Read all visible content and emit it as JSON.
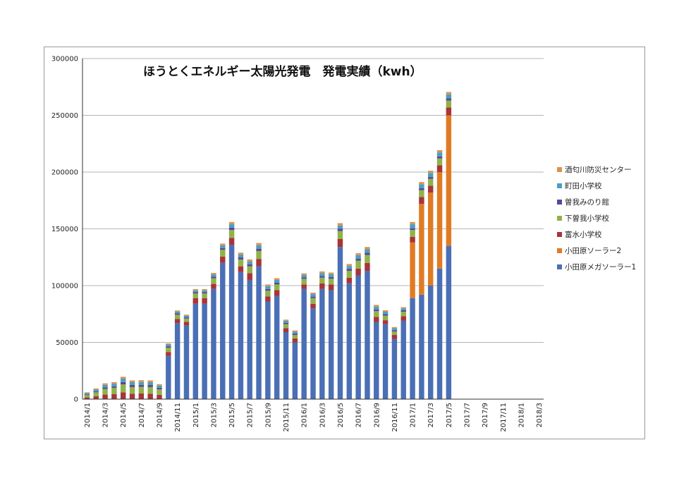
{
  "chart_data": {
    "type": "bar",
    "stacked": true,
    "title": "ほうとくエネルギー太陽光発電　発電実績（kwh）",
    "ylim": [
      0,
      300000
    ],
    "yticks": [
      0,
      50000,
      100000,
      150000,
      200000,
      250000,
      300000
    ],
    "grid": true,
    "legend_position": "right",
    "categories": [
      "2014/1",
      "2014/2",
      "2014/3",
      "2014/4",
      "2014/5",
      "2014/6",
      "2014/7",
      "2014/8",
      "2014/9",
      "2014/10",
      "2014/11",
      "2014/12",
      "2015/1",
      "2015/2",
      "2015/3",
      "2015/4",
      "2015/5",
      "2015/6",
      "2015/7",
      "2015/8",
      "2015/9",
      "2015/10",
      "2015/11",
      "2015/12",
      "2016/1",
      "2016/2",
      "2016/3",
      "2016/4",
      "2016/5",
      "2016/6",
      "2016/7",
      "2016/8",
      "2016/9",
      "2016/10",
      "2016/11",
      "2016/12",
      "2017/1",
      "2017/2",
      "2017/3",
      "2017/4",
      "2017/5",
      "2017/6",
      "2017/7",
      "2017/8",
      "2017/9",
      "2017/10",
      "2017/11",
      "2017/12",
      "2018/1",
      "2018/2",
      "2018/3"
    ],
    "xtick_labels": [
      "2014/1",
      "2014/3",
      "2014/5",
      "2014/7",
      "2014/9",
      "2014/11",
      "2015/1",
      "2015/3",
      "2015/5",
      "2015/7",
      "2015/9",
      "2015/11",
      "2016/1",
      "2016/3",
      "2016/5",
      "2016/7",
      "2016/9",
      "2016/11",
      "2017/1",
      "2017/3",
      "2017/5",
      "2017/7",
      "2017/9",
      "2017/11",
      "2018/1",
      "2018/3"
    ],
    "series": [
      {
        "name": "小田原メガソーラー1",
        "color": "#4a6fb5",
        "values": [
          0,
          0,
          0,
          0,
          0,
          0,
          0,
          0,
          0,
          38000,
          67000,
          65000,
          84000,
          84000,
          97000,
          120000,
          136000,
          112000,
          105000,
          117000,
          86000,
          91000,
          59000,
          50000,
          97000,
          80000,
          97000,
          96000,
          134000,
          102000,
          109000,
          113000,
          68000,
          66000,
          53000,
          69000,
          89000,
          92000,
          100000,
          115000,
          135000,
          0,
          0,
          0,
          0,
          0,
          0,
          0,
          0,
          0,
          0
        ]
      },
      {
        "name": "小田原ソーラー2",
        "color": "#e07b24",
        "values": [
          0,
          0,
          0,
          0,
          0,
          0,
          0,
          0,
          0,
          0,
          0,
          0,
          0,
          0,
          0,
          0,
          0,
          0,
          0,
          0,
          0,
          0,
          0,
          0,
          0,
          0,
          0,
          0,
          0,
          0,
          0,
          0,
          0,
          0,
          0,
          0,
          49000,
          80000,
          82000,
          85000,
          115000,
          0,
          0,
          0,
          0,
          0,
          0,
          0,
          0,
          0,
          0
        ]
      },
      {
        "name": "富水小学校",
        "color": "#a8343a",
        "values": [
          1500,
          2500,
          4000,
          4500,
          6000,
          4800,
          5000,
          4800,
          3800,
          3500,
          3500,
          3000,
          5000,
          5000,
          4500,
          5500,
          6000,
          5000,
          6000,
          6500,
          4500,
          5000,
          3500,
          3500,
          4000,
          4000,
          5000,
          5000,
          7000,
          5000,
          6000,
          7000,
          4500,
          3500,
          3500,
          4000,
          5000,
          6000,
          6000,
          6000,
          7000,
          0,
          0,
          0,
          0,
          0,
          0,
          0,
          0,
          0,
          0
        ]
      },
      {
        "name": "下曽我小学校",
        "color": "#8fb348",
        "values": [
          2000,
          3500,
          5000,
          5500,
          7000,
          5800,
          5800,
          5800,
          4800,
          3800,
          3800,
          3000,
          4000,
          4000,
          5000,
          6000,
          7000,
          6000,
          6000,
          7000,
          5000,
          5000,
          3500,
          3000,
          5000,
          5000,
          5000,
          5000,
          7000,
          6000,
          7000,
          7000,
          5000,
          4000,
          3000,
          4000,
          6000,
          6000,
          6000,
          6000,
          6000,
          0,
          0,
          0,
          0,
          0,
          0,
          0,
          0,
          0,
          0
        ]
      },
      {
        "name": "曽我みのり館",
        "color": "#5b4597",
        "values": [
          600,
          800,
          1300,
          1300,
          2000,
          1800,
          1800,
          1800,
          1400,
          1200,
          1200,
          1000,
          1300,
          1300,
          1400,
          1500,
          2000,
          1800,
          1800,
          2000,
          1500,
          1500,
          1200,
          1200,
          1300,
          1300,
          1500,
          1500,
          2000,
          1800,
          1800,
          2000,
          1500,
          1300,
          1200,
          1300,
          1500,
          1700,
          1700,
          1800,
          2000,
          0,
          0,
          0,
          0,
          0,
          0,
          0,
          0,
          0,
          0
        ]
      },
      {
        "name": "町田小学校",
        "color": "#4a9fc2",
        "values": [
          1200,
          1700,
          2200,
          2300,
          3000,
          2500,
          2500,
          2500,
          2000,
          1600,
          1600,
          1500,
          1500,
          1500,
          2000,
          2500,
          3000,
          2500,
          2500,
          3000,
          2500,
          2500,
          1800,
          1800,
          2200,
          2200,
          2500,
          2500,
          3000,
          2500,
          3000,
          3000,
          2500,
          2200,
          1800,
          1700,
          3500,
          3500,
          3500,
          3500,
          3500,
          0,
          0,
          0,
          0,
          0,
          0,
          0,
          0,
          0,
          0
        ]
      },
      {
        "name": "酒匂川防災センター",
        "color": "#d99350",
        "values": [
          700,
          900,
          1400,
          1400,
          1700,
          1600,
          1600,
          1600,
          1200,
          1000,
          1000,
          900,
          1100,
          1100,
          1300,
          1500,
          2000,
          1700,
          1700,
          2000,
          1500,
          1500,
          1000,
          1000,
          1300,
          1300,
          1500,
          1500,
          2000,
          1700,
          1700,
          2000,
          1500,
          1300,
          1000,
          1000,
          2000,
          2000,
          2000,
          2000,
          2000,
          0,
          0,
          0,
          0,
          0,
          0,
          0,
          0,
          0,
          0
        ]
      }
    ]
  }
}
